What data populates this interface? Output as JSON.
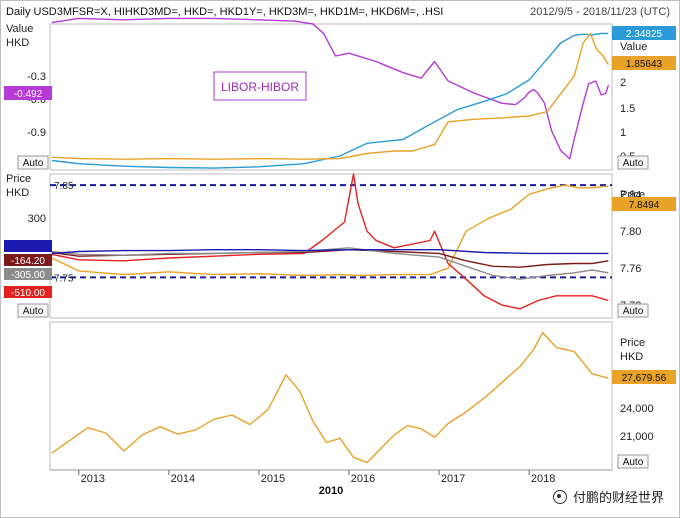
{
  "header": {
    "title": "Daily USD3MFSR=X, HIHKD3MD=, HKD=, HKD1Y=, HKD3M=, HKD1M=, HKD6M=, .HSI",
    "date_range": "2012/9/5 - 2018/11/23 (UTC)"
  },
  "watermark": "付鹏的财经世界",
  "ui": {
    "auto_label": "Auto"
  },
  "chart_data": [
    {
      "type": "line",
      "panel": "libor-hibor",
      "annotation": "LIBOR-HIBOR",
      "left_axis": {
        "label_line1": "Value",
        "label_line2": "HKD",
        "ticks": [
          -0.3,
          -0.6,
          -0.9
        ],
        "ylim": [
          -1.1,
          -0.05
        ]
      },
      "right_axis": {
        "label": "Value",
        "ticks": [
          2,
          1.5,
          1,
          0.5
        ],
        "ylim": [
          0.2,
          2.5
        ]
      },
      "readouts": {
        "spread": "-0.492",
        "usd_libor": "2.34825",
        "hkd_hibor": "1.85643"
      },
      "series": [
        {
          "color": "#b63ad6",
          "axis": "left",
          "x": [
            2012.7,
            2013.0,
            2013.5,
            2014.0,
            2014.5,
            2015.0,
            2015.4,
            2015.6,
            2015.72,
            2015.85,
            2016.0,
            2016.3,
            2016.6,
            2016.8,
            2016.95,
            2017.1,
            2017.4,
            2017.7,
            2017.85,
            2017.95,
            2018.0,
            2018.05,
            2018.1,
            2018.17,
            2018.25,
            2018.35,
            2018.45,
            2018.5,
            2018.6,
            2018.66,
            2018.74,
            2018.8,
            2018.85,
            2018.88
          ],
          "values": [
            -0.04,
            -0.01,
            -0.02,
            -0.01,
            -0.01,
            -0.02,
            -0.03,
            -0.05,
            -0.12,
            -0.28,
            -0.26,
            -0.32,
            -0.4,
            -0.44,
            -0.32,
            -0.46,
            -0.55,
            -0.62,
            -0.63,
            -0.58,
            -0.54,
            -0.52,
            -0.55,
            -0.62,
            -0.82,
            -0.96,
            -1.02,
            -0.88,
            -0.62,
            -0.48,
            -0.46,
            -0.56,
            -0.55,
            -0.49
          ]
        },
        {
          "color": "#2a9bd6",
          "axis": "right",
          "x": [
            2012.7,
            2013.0,
            2013.5,
            2014.0,
            2014.5,
            2015.0,
            2015.5,
            2015.9,
            2016.2,
            2016.6,
            2016.9,
            2017.2,
            2017.5,
            2017.75,
            2018.0,
            2018.2,
            2018.35,
            2018.5,
            2018.6,
            2018.7,
            2018.8,
            2018.88
          ],
          "values": [
            0.35,
            0.3,
            0.26,
            0.24,
            0.23,
            0.25,
            0.3,
            0.42,
            0.62,
            0.68,
            0.92,
            1.15,
            1.28,
            1.4,
            1.62,
            1.95,
            2.2,
            2.32,
            2.34,
            2.33,
            2.35,
            2.35
          ]
        },
        {
          "color": "#e8a228",
          "axis": "right",
          "x": [
            2012.7,
            2013.0,
            2013.5,
            2014.0,
            2014.5,
            2015.0,
            2015.5,
            2015.9,
            2016.2,
            2016.5,
            2016.7,
            2016.95,
            2017.1,
            2017.4,
            2017.7,
            2018.0,
            2018.2,
            2018.35,
            2018.5,
            2018.6,
            2018.68,
            2018.75,
            2018.82,
            2018.88
          ],
          "values": [
            0.4,
            0.38,
            0.37,
            0.38,
            0.37,
            0.38,
            0.37,
            0.38,
            0.46,
            0.5,
            0.5,
            0.6,
            0.96,
            1.0,
            1.02,
            1.05,
            1.12,
            1.4,
            1.68,
            2.2,
            2.35,
            2.1,
            2.0,
            1.86
          ]
        }
      ]
    },
    {
      "type": "line",
      "panel": "hkd-spot-hibor",
      "left_axis": {
        "label_line1": "Price",
        "label_line2": "HKD",
        "ticks": [
          300
        ]
      },
      "right_axis": {
        "label": "Price",
        "ticks": [
          7.84,
          7.8,
          7.76,
          7.72
        ],
        "ylim": [
          7.706,
          7.862
        ]
      },
      "reference_lines": [
        {
          "label": "7.85",
          "value": 7.85,
          "color": "#1a1a9a"
        },
        {
          "label": "7.75",
          "value": 7.75,
          "color": "#1a1a9a"
        }
      ],
      "readouts": {
        "spot": "7.8494",
        "labels": [
          "-164.20",
          "-305.00",
          "-510.00"
        ]
      },
      "series": [
        {
          "color": "#e8a228",
          "x": [
            2012.7,
            2013.0,
            2013.5,
            2014.0,
            2014.5,
            2015.0,
            2015.5,
            2015.9,
            2016.1,
            2016.5,
            2016.9,
            2017.1,
            2017.3,
            2017.55,
            2017.8,
            2018.0,
            2018.2,
            2018.4,
            2018.55,
            2018.7,
            2018.88
          ],
          "values": [
            7.771,
            7.757,
            7.753,
            7.756,
            7.753,
            7.754,
            7.752,
            7.753,
            7.752,
            7.753,
            7.753,
            7.76,
            7.8,
            7.814,
            7.824,
            7.84,
            7.846,
            7.85,
            7.847,
            7.847,
            7.849
          ]
        },
        {
          "color": "#e52020",
          "x": [
            2012.7,
            2013.0,
            2013.5,
            2014.0,
            2014.5,
            2015.0,
            2015.5,
            2015.7,
            2015.95,
            2016.05,
            2016.1,
            2016.2,
            2016.3,
            2016.5,
            2016.9,
            2016.95,
            2017.1,
            2017.3,
            2017.5,
            2017.7,
            2017.9,
            2018.1,
            2018.3,
            2018.5,
            2018.7,
            2018.88
          ],
          "values": [
            7.775,
            7.769,
            7.768,
            7.771,
            7.773,
            7.775,
            7.776,
            7.79,
            7.81,
            7.862,
            7.83,
            7.8,
            7.79,
            7.782,
            7.79,
            7.8,
            7.765,
            7.748,
            7.73,
            7.72,
            7.716,
            7.725,
            7.73,
            7.73,
            7.73,
            7.725
          ]
        },
        {
          "color": "#7a1a1a",
          "x": [
            2012.7,
            2013.0,
            2013.5,
            2014.0,
            2014.5,
            2015.0,
            2015.5,
            2016.0,
            2016.5,
            2017.0,
            2017.3,
            2017.6,
            2017.9,
            2018.2,
            2018.5,
            2018.7,
            2018.88
          ],
          "values": [
            7.777,
            7.773,
            7.774,
            7.775,
            7.776,
            7.777,
            7.777,
            7.78,
            7.778,
            7.776,
            7.768,
            7.762,
            7.761,
            7.764,
            7.765,
            7.765,
            7.768
          ]
        },
        {
          "color": "#8c8c8c",
          "x": [
            2012.7,
            2013.0,
            2013.5,
            2014.0,
            2014.5,
            2015.0,
            2015.5,
            2016.0,
            2016.5,
            2017.0,
            2017.3,
            2017.6,
            2017.9,
            2018.2,
            2018.5,
            2018.7,
            2018.88
          ],
          "values": [
            7.778,
            7.775,
            7.774,
            7.776,
            7.776,
            7.777,
            7.778,
            7.782,
            7.776,
            7.772,
            7.762,
            7.752,
            7.748,
            7.752,
            7.755,
            7.758,
            7.755
          ]
        },
        {
          "color": "#1a1ab0",
          "x": [
            2012.7,
            2013.0,
            2013.5,
            2014.0,
            2014.5,
            2015.0,
            2015.5,
            2016.0,
            2016.5,
            2017.0,
            2017.5,
            2018.0,
            2018.5,
            2018.88
          ],
          "values": [
            7.776,
            7.778,
            7.779,
            7.779,
            7.78,
            7.78,
            7.779,
            7.78,
            7.78,
            7.78,
            7.777,
            7.776,
            7.776,
            7.776
          ]
        }
      ]
    },
    {
      "type": "line",
      "panel": "hsi",
      "right_axis": {
        "label_line1": "Price",
        "label_line2": "HKD",
        "ticks": [
          "24,000",
          "21,000"
        ],
        "ylim": [
          19000,
          33000
        ]
      },
      "readouts": {
        "last": "27,679.56"
      },
      "series": [
        {
          "color": "#e8a228",
          "x": [
            2012.7,
            2012.9,
            2013.1,
            2013.3,
            2013.5,
            2013.7,
            2013.9,
            2014.1,
            2014.3,
            2014.5,
            2014.7,
            2014.9,
            2015.1,
            2015.3,
            2015.45,
            2015.6,
            2015.75,
            2015.9,
            2016.05,
            2016.2,
            2016.35,
            2016.5,
            2016.65,
            2016.8,
            2016.95,
            2017.1,
            2017.3,
            2017.5,
            2017.7,
            2017.9,
            2018.05,
            2018.15,
            2018.3,
            2018.5,
            2018.7,
            2018.88
          ],
          "values": [
            20600,
            21800,
            23000,
            22500,
            20800,
            22300,
            23100,
            22400,
            22800,
            23800,
            24200,
            23300,
            24700,
            28000,
            26500,
            23600,
            21600,
            22000,
            20200,
            19700,
            21000,
            22300,
            23200,
            22900,
            22100,
            23400,
            24500,
            25800,
            27300,
            28800,
            30400,
            32000,
            30600,
            30200,
            28100,
            27680
          ]
        }
      ]
    }
  ],
  "x_axis": {
    "ticks": [
      "2013",
      "2014",
      "2015",
      "2016",
      "2017",
      "2018"
    ],
    "center_label": "2010",
    "xlim": [
      2012.68,
      2018.92
    ]
  }
}
